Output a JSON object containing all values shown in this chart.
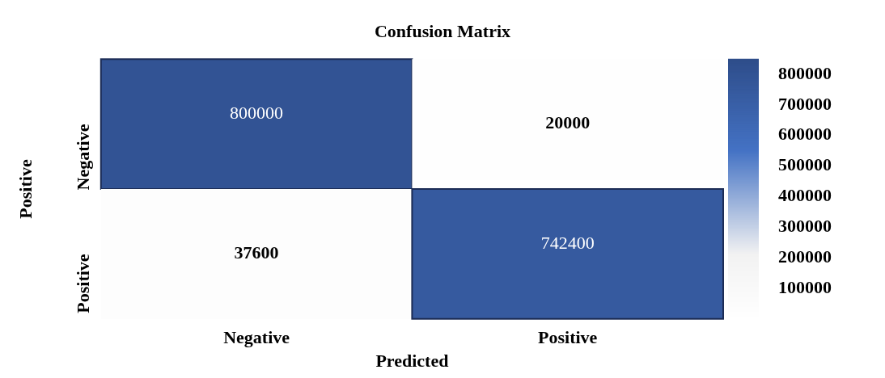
{
  "chart_data": {
    "type": "heatmap",
    "title": "Confusion Matrix",
    "xlabel": "Predicted",
    "ylabel": "Positive",
    "categories": [
      "Negative",
      "Positive"
    ],
    "y_categories": [
      "Negative",
      "Positive"
    ],
    "cells": [
      [
        800000,
        20000
      ],
      [
        37600,
        742400
      ]
    ],
    "data_labels": true,
    "clim": [
      0,
      850000
    ],
    "cticks": [
      100000,
      200000,
      300000,
      400000,
      500000,
      600000,
      700000,
      800000
    ]
  }
}
